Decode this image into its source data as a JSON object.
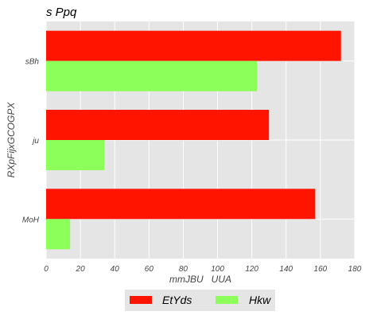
{
  "chart_data": {
    "type": "bar",
    "orientation": "horizontal",
    "title": "s Ppq",
    "xlabel": "mmJBU   UUA",
    "ylabel": "RXpFijxGCOGPX",
    "categories": [
      "sBh",
      "ju",
      "MoH"
    ],
    "series": [
      {
        "name": "EtYds",
        "color": "#ff1400",
        "values": [
          172,
          130,
          157
        ]
      },
      {
        "name": "Hkw",
        "color": "#8cff5a",
        "values": [
          123,
          34,
          14
        ]
      }
    ],
    "xlim": [
      0,
      180
    ],
    "xticks": [
      "0",
      "20",
      "40",
      "60",
      "80",
      "100",
      "120",
      "140",
      "160",
      "180"
    ],
    "grid": true,
    "legend": "bottom-center"
  },
  "colors": {
    "plot_background": "#e5e5e5",
    "grid": "#ffffff"
  }
}
